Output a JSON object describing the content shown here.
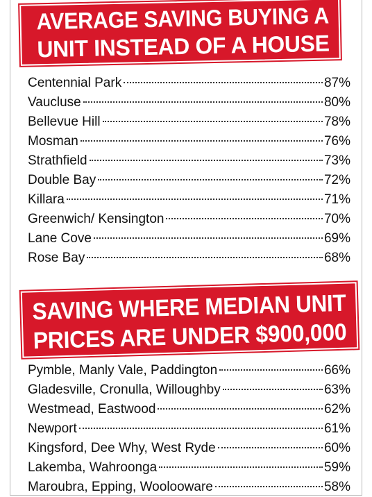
{
  "section1": {
    "title_line1": "AVERAGE SAVING BUYING A",
    "title_line2": "UNIT INSTEAD OF A HOUSE",
    "rows": [
      {
        "name": "Centennial Park",
        "value": "87%"
      },
      {
        "name": "Vaucluse",
        "value": "80%"
      },
      {
        "name": "Bellevue Hill",
        "value": "78%"
      },
      {
        "name": "Mosman",
        "value": "76%"
      },
      {
        "name": "Strathfield",
        "value": "73%"
      },
      {
        "name": "Double Bay",
        "value": "72%"
      },
      {
        "name": "Killara",
        "value": "71%"
      },
      {
        "name": "Greenwich/ Kensington",
        "value": "70%"
      },
      {
        "name": "Lane Cove",
        "value": "69%"
      },
      {
        "name": "Rose Bay",
        "value": "68%"
      }
    ]
  },
  "section2": {
    "title_line1": "SAVING WHERE MEDIAN UNIT",
    "title_line2": "PRICES ARE UNDER $900,000",
    "rows": [
      {
        "name": "Pymble, Manly Vale, Paddington",
        "value": "66%"
      },
      {
        "name": "Gladesville, Cronulla, Willoughby",
        "value": "63%"
      },
      {
        "name": "Westmead, Eastwood",
        "value": "62%"
      },
      {
        "name": "Newport",
        "value": "61%"
      },
      {
        "name": "Kingsford, Dee Why, West Ryde",
        "value": "60%"
      },
      {
        "name": "Lakemba, Wahroonga",
        "value": "59%"
      },
      {
        "name": "Maroubra, Epping, Woolooware",
        "value": "58%"
      }
    ]
  },
  "colors": {
    "banner": "#d7182a",
    "banner_text": "#ffffff",
    "text": "#111111"
  }
}
